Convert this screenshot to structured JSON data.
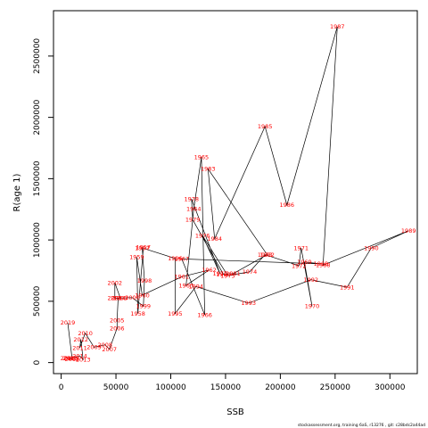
{
  "chart_data": {
    "type": "line",
    "xlabel": "SSB",
    "ylabel": "R(age 1)",
    "xlim": [
      -7000,
      325000
    ],
    "ylim": [
      -90000,
      2870000
    ],
    "x_ticks": [
      0,
      50000,
      100000,
      150000,
      200000,
      250000,
      300000
    ],
    "x_tick_labels": [
      "0",
      "50000",
      "100000",
      "150000",
      "200000",
      "250000",
      "300000"
    ],
    "y_ticks": [
      0,
      500000,
      1000000,
      1500000,
      2000000,
      2500000
    ],
    "y_tick_labels": [
      "0",
      "500000",
      "1000000",
      "1500000",
      "2000000",
      "2500000"
    ],
    "grid": false,
    "line_color": "#000000",
    "label_color": "#ff0000",
    "points": [
      {
        "year": "1957",
        "x": 75000,
        "y": 940000
      },
      {
        "year": "1958",
        "x": 70000,
        "y": 400000
      },
      {
        "year": "1959",
        "x": 69000,
        "y": 860000
      },
      {
        "year": "1960",
        "x": 74000,
        "y": 550000
      },
      {
        "year": "1961",
        "x": 110000,
        "y": 700000
      },
      {
        "year": "1962",
        "x": 135000,
        "y": 755000
      },
      {
        "year": "1963",
        "x": 114000,
        "y": 630000
      },
      {
        "year": "1964",
        "x": 121000,
        "y": 1255000
      },
      {
        "year": "1965",
        "x": 128000,
        "y": 1675000
      },
      {
        "year": "1966",
        "x": 131000,
        "y": 390000
      },
      {
        "year": "1967",
        "x": 110000,
        "y": 845000
      },
      {
        "year": "1968",
        "x": 237000,
        "y": 805000
      },
      {
        "year": "1969",
        "x": 222000,
        "y": 820000
      },
      {
        "year": "1970",
        "x": 229000,
        "y": 460000
      },
      {
        "year": "1971",
        "x": 219000,
        "y": 935000
      },
      {
        "year": "1972",
        "x": 217000,
        "y": 790000
      },
      {
        "year": "1973",
        "x": 186000,
        "y": 880000
      },
      {
        "year": "1974",
        "x": 172000,
        "y": 740000
      },
      {
        "year": "1975",
        "x": 152000,
        "y": 710000
      },
      {
        "year": "1976",
        "x": 129000,
        "y": 1035000
      },
      {
        "year": "1977",
        "x": 145000,
        "y": 725000
      },
      {
        "year": "1978",
        "x": 119000,
        "y": 1335000
      },
      {
        "year": "1979",
        "x": 120000,
        "y": 1165000
      },
      {
        "year": "1980",
        "x": 148000,
        "y": 720000
      },
      {
        "year": "1981",
        "x": 157000,
        "y": 725000
      },
      {
        "year": "1982",
        "x": 188000,
        "y": 880000
      },
      {
        "year": "1983",
        "x": 134000,
        "y": 1580000
      },
      {
        "year": "1984",
        "x": 140000,
        "y": 1010000
      },
      {
        "year": "1985",
        "x": 186000,
        "y": 1925000
      },
      {
        "year": "1986",
        "x": 206000,
        "y": 1285000
      },
      {
        "year": "1987",
        "x": 252000,
        "y": 2740000
      },
      {
        "year": "1988",
        "x": 239000,
        "y": 795000
      },
      {
        "year": "1989",
        "x": 317000,
        "y": 1075000
      },
      {
        "year": "1990",
        "x": 283000,
        "y": 935000
      },
      {
        "year": "1991",
        "x": 261000,
        "y": 615000
      },
      {
        "year": "1992",
        "x": 228000,
        "y": 675000
      },
      {
        "year": "1993",
        "x": 171000,
        "y": 485000
      },
      {
        "year": "1994",
        "x": 123000,
        "y": 620000
      },
      {
        "year": "1995",
        "x": 104000,
        "y": 400000
      },
      {
        "year": "1996",
        "x": 104000,
        "y": 850000
      },
      {
        "year": "1997",
        "x": 74000,
        "y": 935000
      },
      {
        "year": "1998",
        "x": 76000,
        "y": 670000
      },
      {
        "year": "1999",
        "x": 75000,
        "y": 460000
      },
      {
        "year": "2000",
        "x": 65000,
        "y": 530000
      },
      {
        "year": "2001",
        "x": 49000,
        "y": 525000
      },
      {
        "year": "2002",
        "x": 49000,
        "y": 650000
      },
      {
        "year": "2003",
        "x": 54000,
        "y": 525000
      },
      {
        "year": "2004",
        "x": 52000,
        "y": 525000
      },
      {
        "year": "2005",
        "x": 51000,
        "y": 345000
      },
      {
        "year": "2006",
        "x": 51000,
        "y": 280000
      },
      {
        "year": "2007",
        "x": 44000,
        "y": 110000
      },
      {
        "year": "2008",
        "x": 40000,
        "y": 145000
      },
      {
        "year": "2009",
        "x": 30000,
        "y": 125000
      },
      {
        "year": "2010",
        "x": 22000,
        "y": 240000
      },
      {
        "year": "2011",
        "x": 17000,
        "y": 120000
      },
      {
        "year": "2012",
        "x": 18000,
        "y": 190000
      },
      {
        "year": "2013",
        "x": 20000,
        "y": 25000
      },
      {
        "year": "2014",
        "x": 17000,
        "y": 55000
      },
      {
        "year": "2015",
        "x": 9000,
        "y": 35000
      },
      {
        "year": "2016",
        "x": 6000,
        "y": 35000
      },
      {
        "year": "2017",
        "x": 8000,
        "y": 35000
      },
      {
        "year": "2018",
        "x": 10000,
        "y": 30000
      },
      {
        "year": "2019",
        "x": 6000,
        "y": 325000
      }
    ]
  },
  "footer": "stockassessment.org, training 6aS, r13276 , git: c28bdc2a44ad"
}
